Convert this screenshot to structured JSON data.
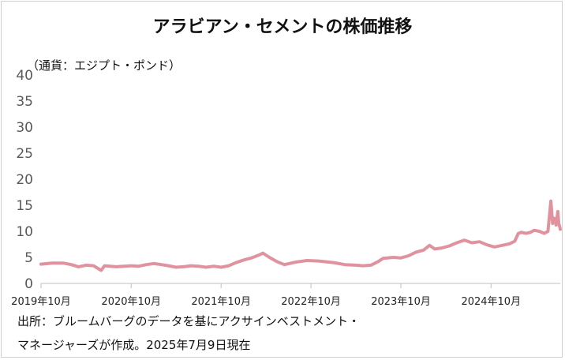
{
  "chart_data": {
    "type": "line",
    "title": "アラビアン・セメントの株価推移",
    "unit_label": "（通貨：エジプト・ポンド）",
    "ylim": [
      0,
      40
    ],
    "y_ticks": [
      "0",
      "5",
      "10",
      "15",
      "20",
      "25",
      "30",
      "35",
      "40"
    ],
    "x_range": [
      "2019-10-01",
      "2025-07-09"
    ],
    "x_ticks": [
      {
        "date": "2019-10-01",
        "label": "2019年10月"
      },
      {
        "date": "2020-10-01",
        "label": "2020年10月"
      },
      {
        "date": "2021-10-01",
        "label": "2021年10月"
      },
      {
        "date": "2022-10-01",
        "label": "2022年10月"
      },
      {
        "date": "2023-10-01",
        "label": "2023年10月"
      },
      {
        "date": "2024-10-01",
        "label": "2024年10月"
      }
    ],
    "grid": false,
    "series": [
      {
        "color": "#e0929f",
        "points": [
          [
            "2019-10-01",
            3.7
          ],
          [
            "2019-11-15",
            3.9
          ],
          [
            "2020-01-01",
            3.9
          ],
          [
            "2020-02-01",
            3.6
          ],
          [
            "2020-03-01",
            3.2
          ],
          [
            "2020-04-01",
            3.5
          ],
          [
            "2020-05-01",
            3.4
          ],
          [
            "2020-06-01",
            2.5
          ],
          [
            "2020-06-15",
            3.4
          ],
          [
            "2020-08-01",
            3.2
          ],
          [
            "2020-09-01",
            3.3
          ],
          [
            "2020-10-01",
            3.4
          ],
          [
            "2020-11-01",
            3.3
          ],
          [
            "2020-12-01",
            3.6
          ],
          [
            "2021-01-01",
            3.8
          ],
          [
            "2021-02-01",
            3.6
          ],
          [
            "2021-03-01",
            3.4
          ],
          [
            "2021-04-01",
            3.1
          ],
          [
            "2021-05-01",
            3.2
          ],
          [
            "2021-06-01",
            3.4
          ],
          [
            "2021-07-01",
            3.3
          ],
          [
            "2021-08-01",
            3.1
          ],
          [
            "2021-09-01",
            3.3
          ],
          [
            "2021-10-01",
            3.1
          ],
          [
            "2021-11-01",
            3.4
          ],
          [
            "2021-12-01",
            4.0
          ],
          [
            "2022-01-01",
            4.5
          ],
          [
            "2022-02-01",
            4.9
          ],
          [
            "2022-03-01",
            5.4
          ],
          [
            "2022-03-20",
            5.8
          ],
          [
            "2022-04-15",
            5.0
          ],
          [
            "2022-05-15",
            4.2
          ],
          [
            "2022-06-15",
            3.6
          ],
          [
            "2022-08-01",
            4.1
          ],
          [
            "2022-09-15",
            4.4
          ],
          [
            "2022-11-01",
            4.3
          ],
          [
            "2023-01-01",
            4.0
          ],
          [
            "2023-02-15",
            3.6
          ],
          [
            "2023-04-01",
            3.5
          ],
          [
            "2023-05-01",
            3.4
          ],
          [
            "2023-06-01",
            3.5
          ],
          [
            "2023-07-01",
            4.2
          ],
          [
            "2023-07-20",
            4.8
          ],
          [
            "2023-09-01",
            5.0
          ],
          [
            "2023-10-01",
            4.9
          ],
          [
            "2023-11-01",
            5.3
          ],
          [
            "2023-12-01",
            6.0
          ],
          [
            "2024-01-01",
            6.4
          ],
          [
            "2024-01-25",
            7.3
          ],
          [
            "2024-02-15",
            6.6
          ],
          [
            "2024-03-15",
            6.8
          ],
          [
            "2024-04-15",
            7.2
          ],
          [
            "2024-05-15",
            7.8
          ],
          [
            "2024-06-15",
            8.3
          ],
          [
            "2024-07-15",
            7.8
          ],
          [
            "2024-08-15",
            8.0
          ],
          [
            "2024-09-15",
            7.4
          ],
          [
            "2024-10-15",
            7.0
          ],
          [
            "2024-11-15",
            7.3
          ],
          [
            "2024-12-15",
            7.6
          ],
          [
            "2025-01-05",
            8.1
          ],
          [
            "2025-01-20",
            9.6
          ],
          [
            "2025-02-01",
            9.8
          ],
          [
            "2025-02-20",
            9.6
          ],
          [
            "2025-03-10",
            9.8
          ],
          [
            "2025-03-25",
            10.2
          ],
          [
            "2025-04-15",
            10.0
          ],
          [
            "2025-05-05",
            9.6
          ],
          [
            "2025-05-20",
            10.0
          ],
          [
            "2025-06-01",
            15.8
          ],
          [
            "2025-06-08",
            11.5
          ],
          [
            "2025-06-15",
            12.5
          ],
          [
            "2025-06-22",
            11.2
          ],
          [
            "2025-06-29",
            13.8
          ],
          [
            "2025-07-03",
            11.5
          ],
          [
            "2025-07-06",
            11.0
          ],
          [
            "2025-07-09",
            10.4
          ]
        ]
      }
    ]
  },
  "source": {
    "line1": "出所：ブルームバーグのデータを基にアクサインベストメント・",
    "line2": "マネージャーズが作成。2025年7月9日現在"
  }
}
